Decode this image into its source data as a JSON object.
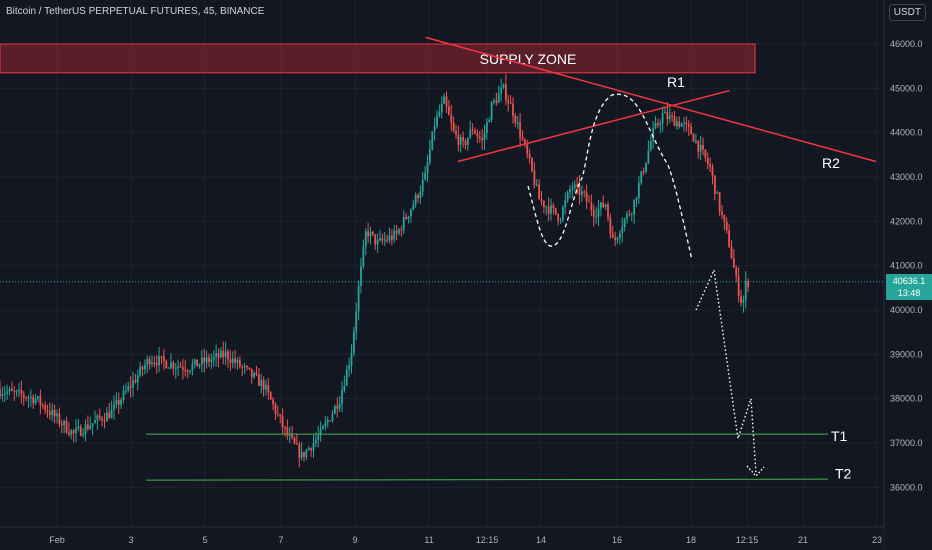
{
  "title": "Bitcoin / TetherUS PERPETUAL FUTURES, 45, BINANCE",
  "currency": "USDT",
  "last_price": "40636.1",
  "countdown": "13:48",
  "colors": {
    "background": "#131722",
    "up": "#26a69a",
    "down": "#ef5350",
    "grid": "#1e222d",
    "annotation_red": "#f23645",
    "target_green": "#4caf50",
    "projection": "#ffffff"
  },
  "annotations": {
    "supply_zone": "SUPPLY ZONE",
    "r1": "R1",
    "r2": "R2",
    "t1": "T1",
    "t2": "T2"
  },
  "chart_data": {
    "type": "candlestick",
    "title": "Bitcoin / TetherUS PERPETUAL FUTURES, 45, BINANCE",
    "y_axis_ticks": [
      36000,
      37000,
      38000,
      39000,
      40000,
      41000,
      42000,
      43000,
      44000,
      45000,
      46000
    ],
    "y_tick_labels": [
      "36000.0",
      "37000.0",
      "38000.0",
      "39000.0",
      "40000.0",
      "41000.0",
      "42000.0",
      "43000.0",
      "44000.0",
      "45000.0",
      "46000.0"
    ],
    "ylim": [
      34800,
      46800
    ],
    "x_tick_labels": [
      "Feb",
      "3",
      "5",
      "7",
      "9",
      "11",
      "12:15",
      "14",
      "16",
      "18",
      "12:15",
      "21",
      "23"
    ],
    "price_path": [
      [
        0,
        38200
      ],
      [
        2,
        38000
      ],
      [
        4,
        37200
      ],
      [
        6,
        37700
      ],
      [
        8,
        38900
      ],
      [
        10,
        38700
      ],
      [
        12,
        39000
      ],
      [
        14,
        38300
      ],
      [
        15.2,
        37200
      ],
      [
        16,
        36700
      ],
      [
        17,
        37200
      ],
      [
        18,
        38000
      ],
      [
        18.6,
        39000
      ],
      [
        19,
        40500
      ],
      [
        19.4,
        41800
      ],
      [
        20,
        41500
      ],
      [
        21,
        41700
      ],
      [
        22,
        42500
      ],
      [
        22.5,
        43000
      ],
      [
        23,
        44200
      ],
      [
        23.5,
        44700
      ],
      [
        24,
        44000
      ],
      [
        24.5,
        43700
      ],
      [
        25,
        44100
      ],
      [
        25.5,
        43800
      ],
      [
        26,
        44600
      ],
      [
        26.6,
        45000
      ],
      [
        27.2,
        44400
      ],
      [
        28,
        43300
      ],
      [
        28.5,
        42500
      ],
      [
        29,
        42300
      ],
      [
        29.6,
        42100
      ],
      [
        30.2,
        42800
      ],
      [
        30.8,
        42600
      ],
      [
        31.4,
        42200
      ],
      [
        32,
        42400
      ],
      [
        32.4,
        41500
      ],
      [
        32.8,
        41900
      ],
      [
        33.4,
        42300
      ],
      [
        34,
        43200
      ],
      [
        34.5,
        44000
      ],
      [
        35,
        44400
      ],
      [
        35.5,
        44300
      ],
      [
        36,
        44200
      ],
      [
        36.5,
        44000
      ],
      [
        37,
        43600
      ],
      [
        37.5,
        43200
      ],
      [
        38,
        42300
      ],
      [
        38.5,
        41500
      ],
      [
        38.9,
        40600
      ],
      [
        39.2,
        40100
      ],
      [
        39.4,
        40636
      ]
    ],
    "levels": {
      "supply_zone": [
        45350,
        46000
      ],
      "t1": 37200,
      "t2": 36150
    },
    "resistance_lines": {
      "r1": [
        [
          24.1,
          43350
        ],
        [
          38.4,
          44950
        ]
      ],
      "r2": [
        [
          22.4,
          46150
        ],
        [
          46.1,
          43350
        ]
      ]
    },
    "projection_path": [
      [
        39.4,
        40000
      ],
      [
        40.4,
        40900
      ],
      [
        42.1,
        37100
      ],
      [
        42.8,
        38000
      ],
      [
        43.1,
        36300
      ]
    ]
  }
}
